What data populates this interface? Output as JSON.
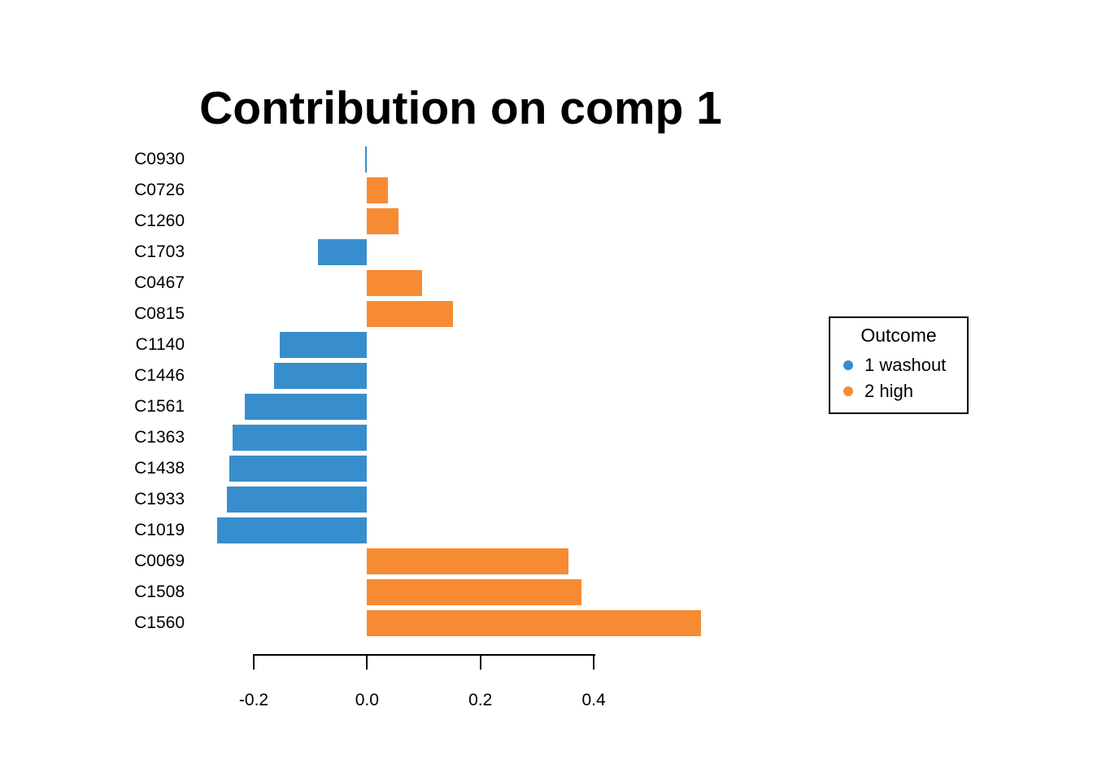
{
  "title": "Contribution on comp 1",
  "legend": {
    "title": "Outcome",
    "items": [
      {
        "label": "1 washout",
        "color": "#388ECC"
      },
      {
        "label": "2 high",
        "color": "#F68B33"
      }
    ]
  },
  "chart_data": {
    "type": "bar",
    "orientation": "horizontal",
    "title": "Contribution on comp 1",
    "categories": [
      "C0930",
      "C0726",
      "C1260",
      "C1703",
      "C0467",
      "C0815",
      "C1140",
      "C1446",
      "C1561",
      "C1363",
      "C1438",
      "C1933",
      "C1019",
      "C0069",
      "C1508",
      "C1560"
    ],
    "values": [
      -0.003,
      0.037,
      0.055,
      -0.087,
      0.097,
      0.152,
      -0.154,
      -0.164,
      -0.216,
      -0.237,
      -0.243,
      -0.247,
      -0.264,
      0.356,
      0.379,
      0.59
    ],
    "groups": [
      "1 washout",
      "2 high",
      "2 high",
      "1 washout",
      "2 high",
      "2 high",
      "1 washout",
      "1 washout",
      "1 washout",
      "1 washout",
      "1 washout",
      "1 washout",
      "1 washout",
      "2 high",
      "2 high",
      "2 high"
    ],
    "colors": {
      "1 washout": "#388ECC",
      "2 high": "#F68B33"
    },
    "x_axis": {
      "ticks": [
        -0.2,
        0.0,
        0.2,
        0.4
      ],
      "tick_labels": [
        "-0.2",
        "0.0",
        "0.2",
        "0.4"
      ],
      "range": [
        -0.2,
        0.4
      ]
    },
    "grid": false,
    "legend_position": "right",
    "legend_title": "Outcome"
  }
}
